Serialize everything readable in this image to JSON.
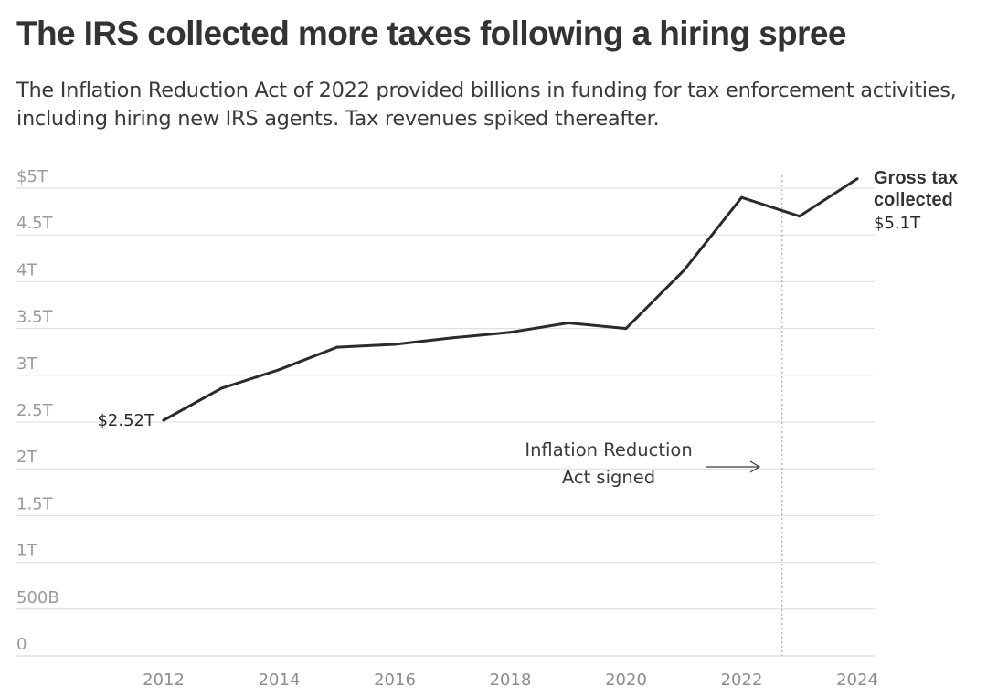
{
  "header": {
    "title": "The IRS collected more taxes following a hiring spree",
    "subtitle": "The Inflation Reduction Act of 2022 provided billions in funding for tax enforcement activities, including hiring new IRS agents. Tax revenues spiked thereafter."
  },
  "chart_data": {
    "type": "line",
    "title": "The IRS collected more taxes following a hiring spree",
    "subtitle": "The Inflation Reduction Act of 2022 provided billions in funding for tax enforcement activities, including hiring new IRS agents. Tax revenues spiked thereafter.",
    "xlabel": "",
    "ylabel": "",
    "xlim": [
      2012,
      2024
    ],
    "ylim": [
      0,
      5
    ],
    "grid": true,
    "legend": "none",
    "y_ticks": [
      {
        "value": 5,
        "label": "$5T"
      },
      {
        "value": 4.5,
        "label": "4.5T"
      },
      {
        "value": 4,
        "label": "4T"
      },
      {
        "value": 3.5,
        "label": "3.5T"
      },
      {
        "value": 3,
        "label": "3T"
      },
      {
        "value": 2.5,
        "label": "2.5T"
      },
      {
        "value": 2,
        "label": "2T"
      },
      {
        "value": 1.5,
        "label": "1.5T"
      },
      {
        "value": 1,
        "label": "1T"
      },
      {
        "value": 0.5,
        "label": "500B"
      },
      {
        "value": 0,
        "label": "0"
      }
    ],
    "x_ticks": [
      {
        "value": 2012,
        "label": "2012"
      },
      {
        "value": 2014,
        "label": "2014"
      },
      {
        "value": 2016,
        "label": "2016"
      },
      {
        "value": 2018,
        "label": "2018"
      },
      {
        "value": 2020,
        "label": "2020"
      },
      {
        "value": 2022,
        "label": "2022"
      },
      {
        "value": 2024,
        "label": "2024"
      }
    ],
    "series": [
      {
        "name": "Gross tax collected",
        "color": "#2b2b2b",
        "x": [
          2012,
          2013,
          2014,
          2015,
          2016,
          2017,
          2018,
          2019,
          2020,
          2021,
          2022,
          2023,
          2024
        ],
        "y": [
          2.52,
          2.86,
          3.06,
          3.3,
          3.33,
          3.4,
          3.46,
          3.56,
          3.5,
          4.12,
          4.9,
          4.7,
          5.1
        ]
      }
    ],
    "start_label": "$2.52T",
    "end_label": {
      "name_lines": [
        "Gross tax",
        "collected"
      ],
      "value": "$5.1T"
    },
    "event": {
      "x": 2022.7,
      "label_lines": [
        "Inflation Reduction",
        "Act signed"
      ],
      "line_style": "dotted",
      "arrow": "right"
    },
    "colors": {
      "line": "#2b2b2b",
      "grid": "#dcdcdc",
      "event_line": "#9a9a9a"
    }
  }
}
